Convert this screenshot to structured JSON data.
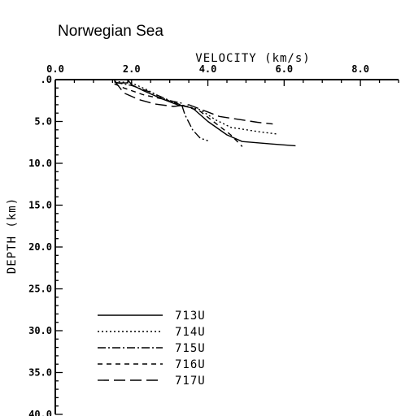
{
  "chart_data": {
    "type": "line",
    "title": "Norwegian Sea",
    "xlabel": "VELOCITY (km/s)",
    "ylabel": "DEPTH (km)",
    "xlim": [
      0,
      9
    ],
    "ylim": [
      0,
      40
    ],
    "y_inverted": true,
    "x_axis_position": "top",
    "x_ticks": [
      0,
      2,
      4,
      6,
      8
    ],
    "x_tick_labels": [
      "0.0",
      "2.0",
      "4.0",
      "6.0",
      "8.0"
    ],
    "y_ticks": [
      0,
      5,
      10,
      15,
      20,
      25,
      30,
      35,
      40
    ],
    "y_tick_labels": [
      ".0",
      "5.0",
      "10.0",
      "15.0",
      "20.0",
      "25.0",
      "30.0",
      "35.0",
      "40.0"
    ],
    "grid": false,
    "legend_position": "bottom-left",
    "series": [
      {
        "name": "713U",
        "dash": "solid",
        "points": [
          [
            1.55,
            0.1
          ],
          [
            1.6,
            0.4
          ],
          [
            1.9,
            0.4
          ],
          [
            1.9,
            0.05
          ],
          [
            2.0,
            0.6
          ],
          [
            2.3,
            1.3
          ],
          [
            2.8,
            2.3
          ],
          [
            3.2,
            3.0
          ],
          [
            3.6,
            3.4
          ],
          [
            4.0,
            5.0
          ],
          [
            4.5,
            6.6
          ],
          [
            4.9,
            7.4
          ],
          [
            5.7,
            7.7
          ],
          [
            6.3,
            7.9
          ]
        ]
      },
      {
        "name": "714U",
        "dash": "dotted",
        "points": [
          [
            1.55,
            0.2
          ],
          [
            2.0,
            0.4
          ],
          [
            2.4,
            1.2
          ],
          [
            2.8,
            2.2
          ],
          [
            3.2,
            2.9
          ],
          [
            3.8,
            3.6
          ],
          [
            4.2,
            4.8
          ],
          [
            4.6,
            5.7
          ],
          [
            5.3,
            6.2
          ],
          [
            5.8,
            6.5
          ]
        ]
      },
      {
        "name": "715U",
        "dash": "dashdot",
        "points": [
          [
            1.55,
            0.3
          ],
          [
            2.0,
            0.7
          ],
          [
            2.5,
            1.5
          ],
          [
            3.0,
            2.5
          ],
          [
            3.3,
            2.8
          ],
          [
            3.4,
            4.2
          ],
          [
            3.6,
            6.0
          ],
          [
            3.8,
            7.0
          ],
          [
            4.0,
            7.3
          ]
        ]
      },
      {
        "name": "716U",
        "dash": "dashed",
        "points": [
          [
            1.55,
            0.5
          ],
          [
            1.8,
            1.0
          ],
          [
            2.3,
            1.8
          ],
          [
            2.8,
            2.3
          ],
          [
            3.3,
            3.0
          ],
          [
            3.8,
            3.8
          ],
          [
            4.2,
            5.2
          ],
          [
            4.6,
            6.6
          ],
          [
            4.9,
            8.0
          ]
        ]
      },
      {
        "name": "717U",
        "dash": "longdash",
        "points": [
          [
            1.55,
            0.15
          ],
          [
            1.8,
            1.6
          ],
          [
            2.2,
            2.4
          ],
          [
            2.6,
            2.9
          ],
          [
            3.1,
            3.2
          ],
          [
            3.5,
            3.0
          ],
          [
            3.9,
            3.7
          ],
          [
            4.3,
            4.4
          ],
          [
            5.3,
            5.1
          ],
          [
            5.7,
            5.3
          ]
        ]
      }
    ]
  }
}
